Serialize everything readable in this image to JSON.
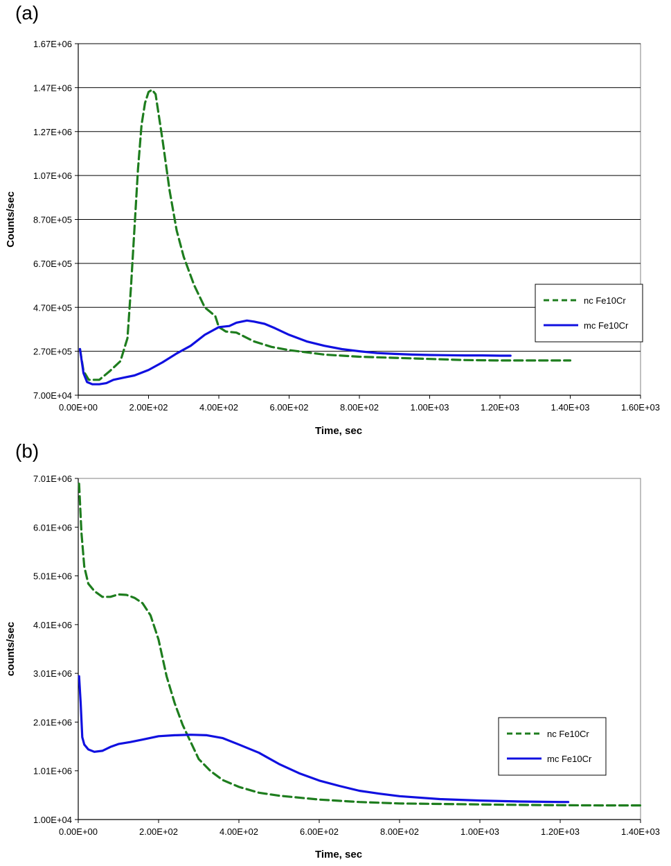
{
  "chart_data": [
    {
      "panel": "(a)",
      "type": "line",
      "xlabel": "Time, sec",
      "ylabel": "Counts/sec",
      "xlim": [
        0,
        1600
      ],
      "ylim": [
        70000,
        1670000
      ],
      "x_ticks": [
        "0.00E+00",
        "2.00E+02",
        "4.00E+02",
        "6.00E+02",
        "8.00E+02",
        "1.00E+03",
        "1.20E+03",
        "1.40E+03",
        "1.60E+03"
      ],
      "y_ticks": [
        "7.00E+04",
        "2.70E+05",
        "4.70E+05",
        "6.70E+05",
        "8.70E+05",
        "1.07E+06",
        "1.27E+06",
        "1.47E+06",
        "1.67E+06"
      ],
      "grid": "horizontal",
      "legend_position": "right",
      "colors": {
        "nc": "#1e7d1e",
        "mc": "#1010e0"
      },
      "series": [
        {
          "name": "nc Fe10Cr",
          "style": "dashed",
          "x": [
            5,
            15,
            30,
            60,
            90,
            120,
            140,
            150,
            160,
            170,
            180,
            190,
            200,
            210,
            220,
            240,
            260,
            280,
            300,
            330,
            360,
            390,
            400,
            410,
            420,
            450,
            500,
            550,
            600,
            700,
            800,
            900,
            1000,
            1100,
            1200,
            1300,
            1400
          ],
          "y": [
            280000,
            180000,
            140000,
            140000,
            180000,
            225000,
            330000,
            560000,
            830000,
            1100000,
            1300000,
            1400000,
            1450000,
            1460000,
            1440000,
            1230000,
            1000000,
            820000,
            700000,
            570000,
            470000,
            430000,
            380000,
            370000,
            360000,
            355000,
            315000,
            290000,
            275000,
            255000,
            245000,
            240000,
            235000,
            230000,
            228000,
            228000,
            228000
          ]
        },
        {
          "name": "mc Fe10Cr",
          "style": "solid",
          "x": [
            5,
            15,
            25,
            40,
            60,
            80,
            100,
            130,
            160,
            200,
            240,
            280,
            320,
            360,
            400,
            430,
            450,
            480,
            500,
            530,
            560,
            600,
            650,
            700,
            750,
            800,
            850,
            900,
            950,
            1000,
            1050,
            1100,
            1150,
            1200,
            1230
          ],
          "y": [
            280000,
            170000,
            130000,
            120000,
            120000,
            125000,
            140000,
            150000,
            160000,
            185000,
            220000,
            260000,
            295000,
            345000,
            380000,
            385000,
            400000,
            410000,
            405000,
            395000,
            375000,
            345000,
            315000,
            295000,
            280000,
            270000,
            262000,
            258000,
            255000,
            253000,
            252000,
            251000,
            251000,
            250000,
            250000
          ]
        }
      ]
    },
    {
      "panel": "(b)",
      "type": "line",
      "xlabel": "Time, sec",
      "ylabel": "counts/sec",
      "xlim": [
        0,
        1400
      ],
      "ylim": [
        10000,
        7010000
      ],
      "x_ticks": [
        "0.00E+00",
        "2.00E+02",
        "4.00E+02",
        "6.00E+02",
        "8.00E+02",
        "1.00E+03",
        "1.20E+03",
        "1.40E+03"
      ],
      "y_ticks": [
        "1.00E+04",
        "1.01E+06",
        "2.01E+06",
        "3.01E+06",
        "4.01E+06",
        "5.01E+06",
        "6.01E+06",
        "7.01E+06"
      ],
      "grid": "none",
      "legend_position": "right",
      "colors": {
        "nc": "#1e7d1e",
        "mc": "#1010e0"
      },
      "series": [
        {
          "name": "nc Fe10Cr",
          "style": "dashed",
          "x": [
            2,
            8,
            15,
            25,
            40,
            60,
            80,
            100,
            120,
            140,
            160,
            180,
            200,
            220,
            240,
            260,
            280,
            300,
            330,
            360,
            400,
            450,
            500,
            600,
            700,
            800,
            900,
            1000,
            1100,
            1200,
            1300,
            1400
          ],
          "y": [
            6900000,
            5900000,
            5200000,
            4850000,
            4700000,
            4580000,
            4580000,
            4630000,
            4620000,
            4560000,
            4450000,
            4200000,
            3700000,
            2950000,
            2400000,
            1950000,
            1600000,
            1250000,
            1000000,
            820000,
            680000,
            560000,
            500000,
            420000,
            370000,
            340000,
            330000,
            320000,
            310000,
            305000,
            300000,
            300000
          ]
        },
        {
          "name": "mc Fe10Cr",
          "style": "solid",
          "x": [
            2,
            6,
            10,
            15,
            25,
            40,
            60,
            80,
            100,
            130,
            160,
            200,
            240,
            280,
            320,
            360,
            400,
            450,
            500,
            550,
            600,
            650,
            700,
            750,
            800,
            900,
            1000,
            1100,
            1200,
            1220
          ],
          "y": [
            2950000,
            2400000,
            1700000,
            1550000,
            1450000,
            1400000,
            1420000,
            1500000,
            1560000,
            1600000,
            1650000,
            1720000,
            1740000,
            1750000,
            1740000,
            1680000,
            1550000,
            1380000,
            1150000,
            960000,
            810000,
            700000,
            600000,
            540000,
            490000,
            430000,
            400000,
            380000,
            370000,
            370000
          ]
        }
      ]
    }
  ]
}
